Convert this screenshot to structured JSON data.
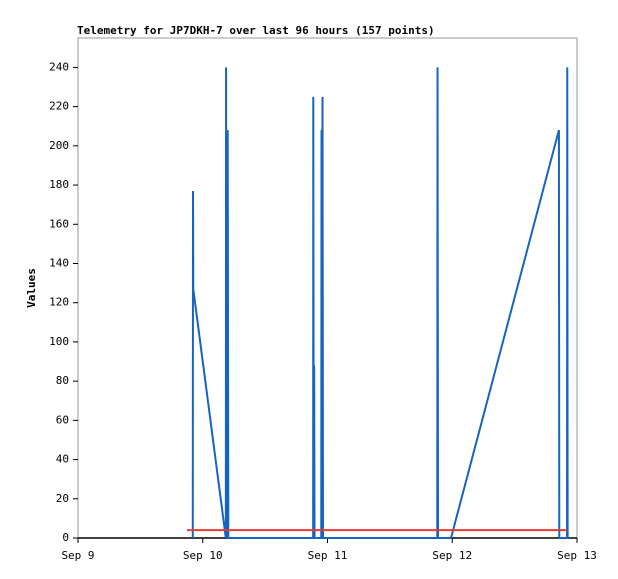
{
  "chart_data": {
    "type": "line",
    "title": "Telemetry for JP7DKH-7 over last 96 hours (157 points)",
    "y_label": "Values",
    "xlim": [
      0,
      4
    ],
    "xticks": [
      {
        "value": 0,
        "label": "Sep 9"
      },
      {
        "value": 1,
        "label": "Sep 10"
      },
      {
        "value": 2,
        "label": "Sep 11"
      },
      {
        "value": 3,
        "label": "Sep 12"
      },
      {
        "value": 4,
        "label": "Sep 13"
      }
    ],
    "ylim": [
      0,
      255
    ],
    "yticks": [
      0,
      20,
      40,
      60,
      80,
      100,
      120,
      140,
      160,
      180,
      200,
      220,
      240
    ],
    "series": [
      {
        "color": "#1565c0",
        "x": [
          0.92,
          0.922,
          0.924,
          1.185,
          1.187,
          1.19,
          1.2,
          1.205,
          1.885,
          1.886,
          1.89,
          1.893,
          1.896,
          1.95,
          1.952,
          1.956,
          1.96,
          1.964,
          2.88,
          2.882,
          2.886,
          2.99,
          3.855,
          3.858,
          3.92,
          3.922,
          3.925
        ],
        "values": [
          0,
          177,
          127,
          0,
          240,
          0,
          208,
          0,
          0,
          225,
          0,
          88,
          0,
          0,
          208,
          0,
          225,
          0,
          0,
          240,
          0,
          0,
          208,
          0,
          0,
          240,
          0
        ]
      },
      {
        "color": "#e53935",
        "x": [
          0.874,
          3.92
        ],
        "values": [
          4,
          4
        ]
      }
    ]
  }
}
